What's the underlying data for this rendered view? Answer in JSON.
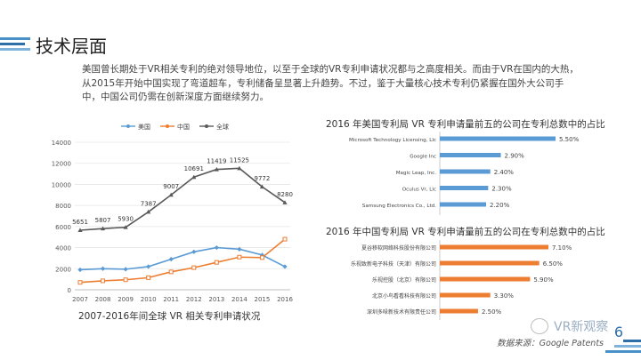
{
  "page": {
    "title": "技术层面",
    "intro": "美国曾长期处于VR相关专利的绝对领导地位，以至于全球的VR专利申请状况都与之高度相关。而由于VR在国内的大热，从2015年开始中国实现了弯道超车，专利储备呈显著上升趋势。不过，鉴于大量核心技术专利仍紧握在国外大公司手中，中国公司仍需在创新深度方面继续努力。",
    "chart_caption": "2007-2016年间全球 VR 相关专利申请状况",
    "rank_a_title": "2016 年美国专利局 VR 专利申请量前五的公司在专利总数中的占比",
    "rank_b_title": "2016 年中国专利局 VR 专利申请量前五的公司在专利总数中的占比",
    "source": "数据来源：Google Patents",
    "watermark": "VR新观察",
    "page_number": "6",
    "colors": {
      "accent": "#2e6fa8",
      "usa": "#5b9bd5",
      "china": "#ed7d31",
      "global": "#595959",
      "bar_blue": "#5b9bd5",
      "bar_orange": "#ed7d31"
    }
  },
  "chart_data": [
    {
      "type": "line",
      "title": "",
      "xlabel": "",
      "ylabel": "",
      "x": [
        "2007",
        "2008",
        "2009",
        "2010",
        "2011",
        "2012",
        "2013",
        "2014",
        "2015",
        "2016"
      ],
      "ylim": [
        0,
        14000
      ],
      "yticks": [
        0,
        2000,
        4000,
        6000,
        8000,
        10000,
        12000,
        14000
      ],
      "legend_position": "top",
      "series": [
        {
          "name": "美国",
          "color": "#5b9bd5",
          "values": [
            1900,
            2000,
            1950,
            2200,
            2900,
            3600,
            4000,
            3850,
            3300,
            2200
          ]
        },
        {
          "name": "中国",
          "color": "#ed7d31",
          "values": [
            700,
            850,
            950,
            1150,
            1700,
            2100,
            2600,
            3100,
            3050,
            4800
          ]
        },
        {
          "name": "全球",
          "color": "#595959",
          "values": [
            5651,
            5807,
            5930,
            7387,
            9007,
            10691,
            11419,
            11525,
            9772,
            8280
          ],
          "labels": [
            "5651",
            "5807",
            "5930",
            "7387",
            "9007",
            "10691",
            "11419",
            "11525",
            "9772",
            "8280"
          ]
        }
      ]
    },
    {
      "type": "bar",
      "orientation": "horizontal",
      "categories": [
        "Microsoft Technology Licensing, Llc",
        "Google Inc",
        "Magic Leap, Inc.",
        "Oculus Vr, Llc",
        "Samsung Electronics Co., Ltd."
      ],
      "values": [
        5.5,
        2.9,
        2.4,
        2.3,
        2.2
      ],
      "labels": [
        "5.50%",
        "2.90%",
        "2.40%",
        "2.30%",
        "2.20%"
      ],
      "color": "#5b9bd5"
    },
    {
      "type": "bar",
      "orientation": "horizontal",
      "categories": [
        "夏谷移软网络科技股份有限公司",
        "乐视致新电子科技（天津）有限公司",
        "乐视控股（北京）有限公司",
        "北京小鸟看看科技有限公司",
        "深圳多哚新技术有限责任公司"
      ],
      "values": [
        7.1,
        6.5,
        5.9,
        3.3,
        2.5
      ],
      "labels": [
        "7.10%",
        "6.50%",
        "5.90%",
        "3.30%",
        "2.50%"
      ],
      "color": "#ed7d31"
    }
  ]
}
